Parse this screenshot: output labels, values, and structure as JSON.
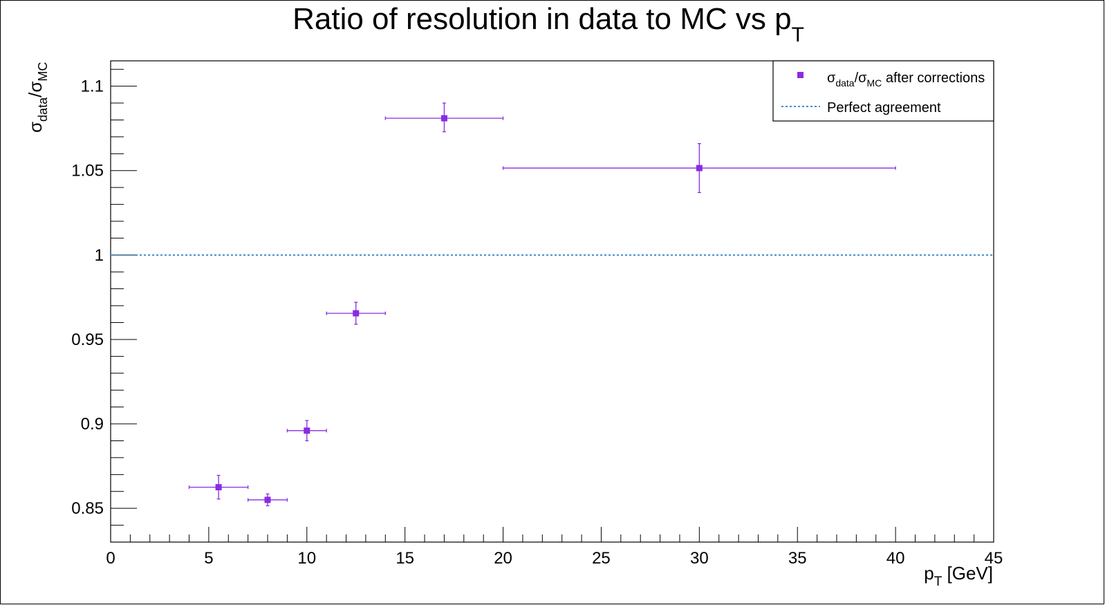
{
  "chart_data": {
    "type": "scatter",
    "title": {
      "main": "Ratio of resolution in data to MC vs p",
      "sub": "T"
    },
    "xlabel": {
      "p": "p",
      "sub": "T",
      "rest": " [GeV]"
    },
    "ylabel": {
      "sigma1": "σ",
      "sub1": "data",
      "slash": "/",
      "sigma2": "σ",
      "sub2": "MC"
    },
    "xlim": [
      0,
      45
    ],
    "ylim": [
      0.83,
      1.115
    ],
    "x_ticks": [
      0,
      5,
      10,
      15,
      20,
      25,
      30,
      35,
      40,
      45
    ],
    "y_ticks": [
      0.85,
      0.9,
      0.95,
      1,
      1.05,
      1.1
    ],
    "x_tick_labels": [
      "0",
      "5",
      "10",
      "15",
      "20",
      "25",
      "30",
      "35",
      "40",
      "45"
    ],
    "y_tick_labels": [
      "0.85",
      "0.9",
      "0.95",
      "1",
      "1.05",
      "1.1"
    ],
    "grid": false,
    "series": [
      {
        "name": "σdata/σMC after corrections",
        "color": "#8a2be2",
        "points": [
          {
            "x": 5.5,
            "y": 0.8625,
            "xlow": 4,
            "xhigh": 7,
            "ylow": 0.8555,
            "yhigh": 0.8695
          },
          {
            "x": 8,
            "y": 0.855,
            "xlow": 7,
            "xhigh": 9,
            "ylow": 0.8515,
            "yhigh": 0.8585
          },
          {
            "x": 10,
            "y": 0.896,
            "xlow": 9,
            "xhigh": 11,
            "ylow": 0.89,
            "yhigh": 0.902
          },
          {
            "x": 12.5,
            "y": 0.9655,
            "xlow": 11,
            "xhigh": 14,
            "ylow": 0.959,
            "yhigh": 0.972
          },
          {
            "x": 17,
            "y": 1.081,
            "xlow": 14,
            "xhigh": 20,
            "ylow": 1.073,
            "yhigh": 1.09
          },
          {
            "x": 30,
            "y": 1.0515,
            "xlow": 20,
            "xhigh": 40,
            "ylow": 1.037,
            "yhigh": 1.066
          }
        ]
      },
      {
        "name": "Perfect agreement",
        "color": "#3a8fd8",
        "type": "hline",
        "y": 1
      }
    ],
    "legend": {
      "position": "top-right",
      "entry1": {
        "sigma1": "σ",
        "sub1": "data",
        "slash": "/",
        "sigma2": "σ",
        "sub2": "MC",
        "rest": " after corrections"
      },
      "entry2": "Perfect agreement"
    }
  }
}
